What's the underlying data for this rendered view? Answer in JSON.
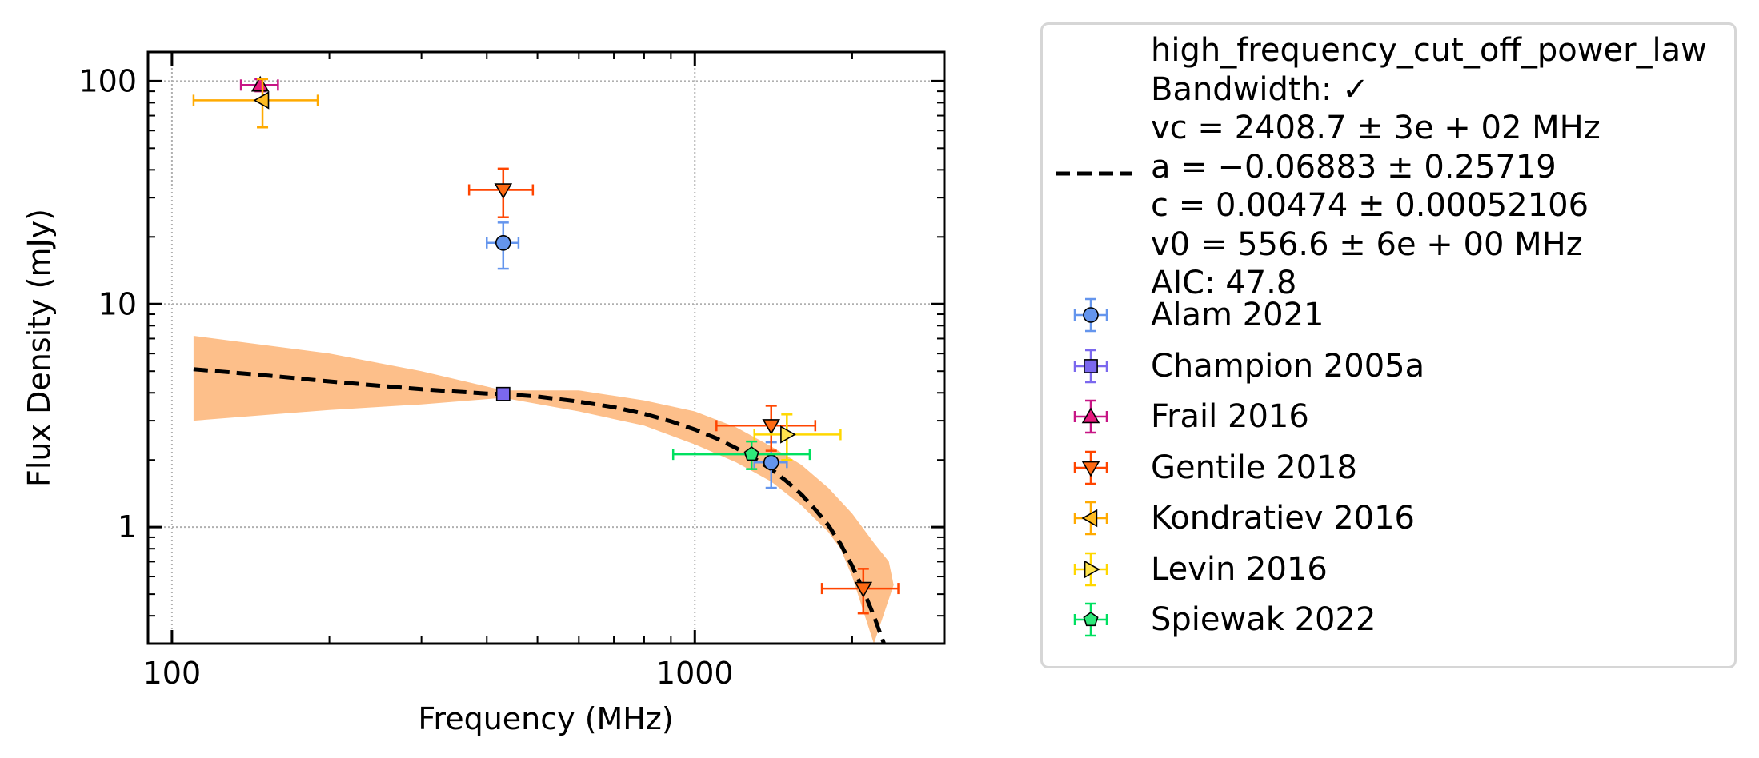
{
  "chart_data": {
    "type": "scatter",
    "xlabel": "Frequency (MHz)",
    "ylabel": "Flux Density (mJy)",
    "x_scale": "log",
    "y_scale": "log",
    "xlim": [
      90,
      3000
    ],
    "ylim": [
      0.3,
      135
    ],
    "x_ticks": [
      {
        "value": 100,
        "label": "100"
      },
      {
        "value": 1000,
        "label": "1000"
      }
    ],
    "y_ticks": [
      {
        "value": 1,
        "label": "1"
      },
      {
        "value": 10,
        "label": "10"
      },
      {
        "value": 100,
        "label": "100"
      }
    ],
    "grid": true,
    "legend_position": "outside-right",
    "fit": {
      "name": "high_frequency_cut_off_power_law",
      "legend_lines": [
        "high_frequency_cut_off_power_law",
        "Bandwidth: ✓",
        "vc = 2408.7 ± 3e + 02 MHz",
        "a = −0.06883 ± 0.25719",
        "c = 0.00474 ± 0.00052106",
        "v0 = 556.6 ± 6e + 00 MHz",
        "AIC: 47.8"
      ],
      "color": "#000000",
      "band_color": "#fdbf8a",
      "curve": {
        "x": [
          110,
          150,
          200,
          250,
          300,
          350,
          400,
          430,
          500,
          600,
          700,
          800,
          900,
          1000,
          1100,
          1200,
          1300,
          1400,
          1500,
          1600,
          1700,
          1800,
          1900,
          2000,
          2100,
          2200,
          2300,
          2350,
          2400
        ],
        "y": [
          5.1,
          4.8,
          4.5,
          4.3,
          4.15,
          4.05,
          3.97,
          3.95,
          3.85,
          3.65,
          3.45,
          3.22,
          2.98,
          2.74,
          2.5,
          2.26,
          2.03,
          1.82,
          1.6,
          1.4,
          1.2,
          1.02,
          0.84,
          0.67,
          0.52,
          0.4,
          0.3,
          0.24,
          0.2
        ]
      },
      "band_upper": {
        "x": [
          110,
          200,
          300,
          430,
          600,
          800,
          1000,
          1200,
          1400,
          1600,
          1800,
          2000,
          2200,
          2350,
          2400
        ],
        "y": [
          7.2,
          6.0,
          5.0,
          4.1,
          4.1,
          3.7,
          3.3,
          2.8,
          2.3,
          1.9,
          1.5,
          1.15,
          0.85,
          0.7,
          0.55
        ]
      },
      "band_lower": {
        "x": [
          110,
          200,
          300,
          430,
          600,
          800,
          1000,
          1200,
          1400,
          1600,
          1800,
          1900,
          2000,
          2100,
          2200
        ],
        "y": [
          3.0,
          3.35,
          3.55,
          3.8,
          3.3,
          2.85,
          2.35,
          1.95,
          1.6,
          1.25,
          0.95,
          0.8,
          0.6,
          0.42,
          0.3
        ]
      }
    },
    "series": [
      {
        "name": "Alam 2021",
        "marker": "circle",
        "color": "#6495ed",
        "ecolor": "#6495ed",
        "points": [
          {
            "x": 430,
            "y": 18.8,
            "xerr": [
              30,
              30
            ],
            "yerr": [
              4.4,
              4.4
            ]
          },
          {
            "x": 1400,
            "y": 1.95,
            "xerr": [
              100,
              100
            ],
            "yerr": [
              0.45,
              0.45
            ]
          }
        ]
      },
      {
        "name": "Champion 2005a",
        "marker": "square",
        "color": "#7b68ee",
        "ecolor": "#7b68ee",
        "points": [
          {
            "x": 430,
            "y": 3.95,
            "xerr": [
              0,
              0
            ],
            "yerr": [
              0,
              0
            ]
          }
        ]
      },
      {
        "name": "Frail 2016",
        "marker": "triangle-up",
        "color": "#e6197e",
        "ecolor": "#c71585",
        "points": [
          {
            "x": 147.5,
            "y": 96,
            "xerr": [
              12,
              12
            ],
            "yerr": [
              6,
              6
            ]
          }
        ]
      },
      {
        "name": "Gentile 2018",
        "marker": "triangle-down",
        "color": "#ff6a13",
        "ecolor": "#ff4500",
        "points": [
          {
            "x": 430,
            "y": 32.5,
            "xerr": [
              60,
              60
            ],
            "yerr": [
              8,
              8
            ]
          },
          {
            "x": 1400,
            "y": 2.85,
            "xerr": [
              300,
              300
            ],
            "yerr": [
              0.65,
              0.65
            ]
          },
          {
            "x": 2100,
            "y": 0.53,
            "xerr": [
              350,
              350
            ],
            "yerr": [
              0.12,
              0.12
            ]
          }
        ]
      },
      {
        "name": "Kondratiev 2016",
        "marker": "triangle-left",
        "color": "#ffbb22",
        "ecolor": "#ffaa00",
        "points": [
          {
            "x": 149,
            "y": 82,
            "xerr": [
              39,
              41
            ],
            "yerr": [
              20,
              20
            ]
          }
        ]
      },
      {
        "name": "Levin 2016",
        "marker": "triangle-right",
        "color": "#ffe44d",
        "ecolor": "#ffd700",
        "points": [
          {
            "x": 1500,
            "y": 2.6,
            "xerr": [
              200,
              400
            ],
            "yerr": [
              0.6,
              0.6
            ]
          }
        ]
      },
      {
        "name": "Spiewak 2022",
        "marker": "pentagon",
        "color": "#2ee87a",
        "ecolor": "#00e060",
        "points": [
          {
            "x": 1284,
            "y": 2.12,
            "xerr": [
              375,
              375
            ],
            "yerr": [
              0.3,
              0.3
            ]
          }
        ]
      }
    ]
  }
}
